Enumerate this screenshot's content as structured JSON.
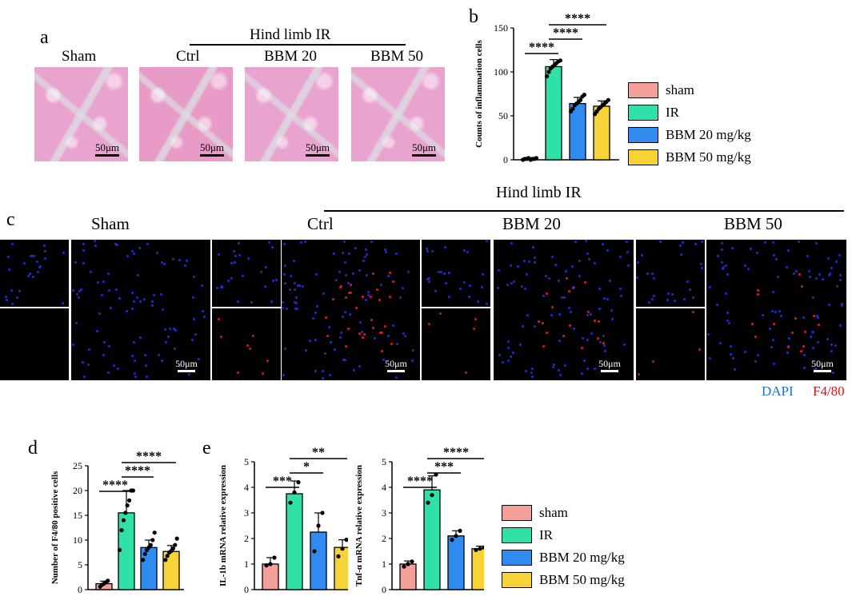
{
  "panels": {
    "a": {
      "letter": "a",
      "group_title": "Hind limb IR",
      "columns": [
        "Sham",
        "Ctrl",
        "BBM 20",
        "BBM 50"
      ],
      "scale_label": "50μm"
    },
    "b": {
      "letter": "b"
    },
    "c": {
      "letter": "c",
      "group_title": "Hind limb IR",
      "columns": [
        "Sham",
        "Ctrl",
        "BBM 20",
        "BBM 50"
      ],
      "scale_label": "50μm",
      "stain_dapi": "DAPI",
      "stain_f480": "F4/80"
    },
    "d": {
      "letter": "d"
    },
    "e": {
      "letter": "e"
    }
  },
  "legend": {
    "items": [
      {
        "label": "sham",
        "color": "#f4a09a"
      },
      {
        "label": "IR",
        "color": "#2fe0a8"
      },
      {
        "label": "BBM 20 mg/kg",
        "color": "#2f8bf0"
      },
      {
        "label": "BBM 50 mg/kg",
        "color": "#f8d338"
      }
    ]
  },
  "chart_data": [
    {
      "id": "b",
      "type": "bar",
      "categories": [
        "sham",
        "IR",
        "BBM 20 mg/kg",
        "BBM 50 mg/kg"
      ],
      "values": [
        1,
        106,
        64,
        61
      ],
      "errors": [
        1,
        8,
        7,
        6
      ],
      "points": [
        [
          0,
          1,
          1,
          2,
          0,
          1,
          1,
          2
        ],
        [
          95,
          100,
          104,
          106,
          108,
          110,
          112,
          113
        ],
        [
          55,
          58,
          62,
          64,
          66,
          68,
          72,
          74
        ],
        [
          52,
          55,
          58,
          60,
          62,
          64,
          66,
          68
        ]
      ],
      "ylabel": "Counts of inflammation cells",
      "ylim": [
        0,
        150
      ],
      "yticks": [
        0,
        50,
        100,
        150
      ],
      "significance": [
        {
          "from": 0,
          "to": 1,
          "label": "****"
        },
        {
          "from": 1,
          "to": 2,
          "label": "****"
        },
        {
          "from": 1,
          "to": 3,
          "label": "****"
        }
      ]
    },
    {
      "id": "d",
      "type": "bar",
      "categories": [
        "sham",
        "IR",
        "BBM 20 mg/kg",
        "BBM 50 mg/kg"
      ],
      "values": [
        1.2,
        15.5,
        8.5,
        7.7
      ],
      "errors": [
        0.5,
        4.5,
        1.5,
        1.2
      ],
      "points": [
        [
          0.6,
          1.0,
          1.2,
          1.5,
          1.8
        ],
        [
          8,
          12,
          14,
          15.5,
          17,
          18,
          20,
          20
        ],
        [
          6,
          7.2,
          8,
          8.5,
          9,
          10,
          11.5
        ],
        [
          6,
          6.8,
          7.5,
          7.8,
          8.3,
          9,
          10.3
        ]
      ],
      "ylabel": "Number of F4/80 positive cells",
      "ylim": [
        0,
        25
      ],
      "yticks": [
        0,
        5,
        10,
        15,
        20,
        25
      ],
      "significance": [
        {
          "from": 0,
          "to": 1,
          "label": "****"
        },
        {
          "from": 1,
          "to": 2,
          "label": "****"
        },
        {
          "from": 1,
          "to": 3,
          "label": "****"
        }
      ]
    },
    {
      "id": "e1",
      "type": "bar",
      "categories": [
        "sham",
        "IR",
        "BBM 20 mg/kg",
        "BBM 50 mg/kg"
      ],
      "values": [
        1.0,
        3.75,
        2.25,
        1.65
      ],
      "errors": [
        0.25,
        0.5,
        0.75,
        0.3
      ],
      "points": [
        [
          0.95,
          1.0,
          1.25
        ],
        [
          3.4,
          3.8,
          4.2
        ],
        [
          1.5,
          2.5,
          3.0
        ],
        [
          1.3,
          1.6,
          1.95
        ]
      ],
      "ylabel": "IL-1b mRNA relative expression",
      "ylim": [
        0,
        5
      ],
      "yticks": [
        0,
        1,
        2,
        3,
        4,
        5
      ],
      "significance": [
        {
          "from": 0,
          "to": 1,
          "label": "***"
        },
        {
          "from": 1,
          "to": 2,
          "label": "*"
        },
        {
          "from": 1,
          "to": 3,
          "label": "**"
        }
      ]
    },
    {
      "id": "e2",
      "type": "bar",
      "categories": [
        "sham",
        "IR",
        "BBM 20 mg/kg",
        "BBM 50 mg/kg"
      ],
      "values": [
        1.0,
        3.9,
        2.1,
        1.6
      ],
      "errors": [
        0.12,
        0.55,
        0.2,
        0.1
      ],
      "points": [
        [
          0.9,
          1.0,
          1.1
        ],
        [
          3.4,
          3.7,
          4.5
        ],
        [
          1.95,
          2.1,
          2.3
        ],
        [
          1.55,
          1.6,
          1.65
        ]
      ],
      "ylabel": "Tnf-α mRNA relative expression",
      "ylim": [
        0,
        5
      ],
      "yticks": [
        0,
        1,
        2,
        3,
        4,
        5
      ],
      "significance": [
        {
          "from": 0,
          "to": 1,
          "label": "****"
        },
        {
          "from": 1,
          "to": 2,
          "label": "***"
        },
        {
          "from": 1,
          "to": 3,
          "label": "****"
        }
      ]
    }
  ]
}
